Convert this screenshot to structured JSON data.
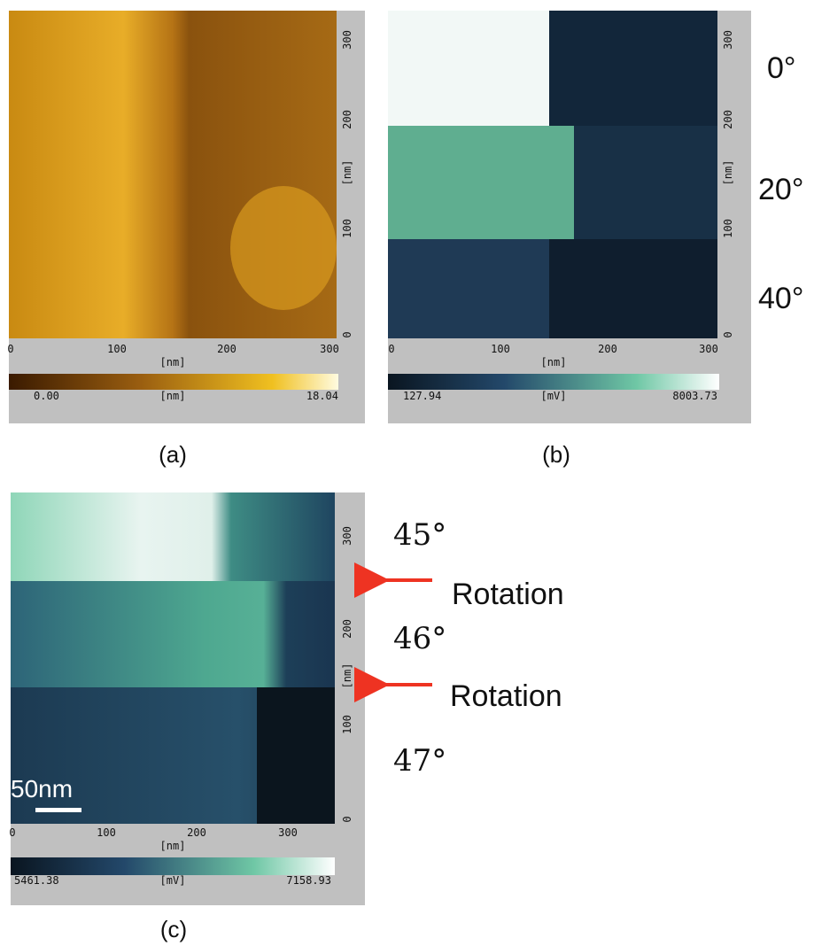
{
  "panels": [
    {
      "caption": "(a)",
      "x_ticks": [
        "0",
        "100",
        "200",
        "300"
      ],
      "x_unit": "[nm]",
      "y_ticks": [
        "0",
        "100",
        "200",
        "300"
      ],
      "y_unit": "[nm]",
      "colorbar": {
        "min": "0.00",
        "unit": "[nm]",
        "max": "18.04"
      }
    },
    {
      "caption": "(b)",
      "x_ticks": [
        "0",
        "100",
        "200",
        "300"
      ],
      "x_unit": "[nm]",
      "y_ticks": [
        "0",
        "100",
        "200",
        "300"
      ],
      "y_unit": "[nm]",
      "colorbar": {
        "min": "127.94",
        "unit": "[mV]",
        "max": "8003.73"
      }
    },
    {
      "caption": "(c)",
      "x_ticks": [
        "0",
        "100",
        "200",
        "300"
      ],
      "x_unit": "[nm]",
      "y_ticks": [
        "0",
        "100",
        "200",
        "300"
      ],
      "y_unit": "[nm]",
      "colorbar": {
        "min": "5461.38",
        "unit": "[mV]",
        "max": "7158.93"
      }
    }
  ],
  "angles_top": [
    "0°",
    "20°",
    "40°"
  ],
  "angles_c": [
    "45°",
    "46°",
    "47°"
  ],
  "rotation_labels": [
    "Rotation",
    "Rotation"
  ],
  "scale_bar": "50nm"
}
